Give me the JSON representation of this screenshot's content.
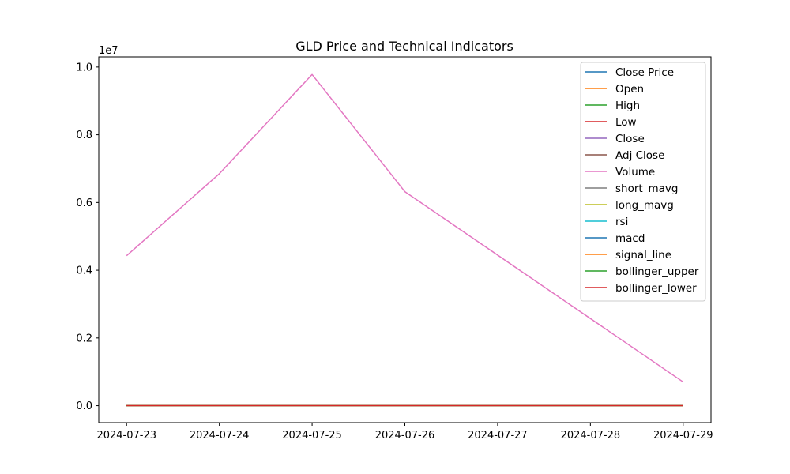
{
  "chart_data": {
    "type": "line",
    "title": "GLD Price and Technical Indicators",
    "xlabel": "",
    "ylabel": "",
    "y_offset_label": "1e7",
    "x": [
      "2024-07-23",
      "2024-07-24",
      "2024-07-25",
      "2024-07-26",
      "2024-07-29"
    ],
    "xticks": [
      "2024-07-23",
      "2024-07-24",
      "2024-07-25",
      "2024-07-26",
      "2024-07-27",
      "2024-07-28",
      "2024-07-29"
    ],
    "yticks": [
      "0.0",
      "0.2",
      "0.4",
      "0.6",
      "0.8",
      "1.0"
    ],
    "ylim": [
      -0.05,
      1.03
    ],
    "y_unit_multiplier": 10000000,
    "grid": false,
    "legend_position": "top-right",
    "series": [
      {
        "name": "Close Price",
        "color": "#1f77b4",
        "values": [
          0.0,
          0.0,
          0.0,
          0.0,
          0.0
        ]
      },
      {
        "name": "Open",
        "color": "#ff7f0e",
        "values": [
          0.0,
          0.0,
          0.0,
          0.0,
          0.0
        ]
      },
      {
        "name": "High",
        "color": "#2ca02c",
        "values": [
          0.0,
          0.0,
          0.0,
          0.0,
          0.0
        ]
      },
      {
        "name": "Low",
        "color": "#d62728",
        "values": [
          0.0,
          0.0,
          0.0,
          0.0,
          0.0
        ]
      },
      {
        "name": "Close",
        "color": "#9467bd",
        "values": [
          0.0,
          0.0,
          0.0,
          0.0,
          0.0
        ]
      },
      {
        "name": "Adj Close",
        "color": "#8c564b",
        "values": [
          0.0,
          0.0,
          0.0,
          0.0,
          0.0
        ]
      },
      {
        "name": "Volume",
        "color": "#e377c2",
        "values": [
          0.443,
          0.685,
          0.978,
          0.632,
          0.07
        ]
      },
      {
        "name": "short_mavg",
        "color": "#7f7f7f",
        "values": [
          0.0,
          0.0,
          0.0,
          0.0,
          0.0
        ]
      },
      {
        "name": "long_mavg",
        "color": "#bcbd22",
        "values": [
          0.0,
          0.0,
          0.0,
          0.0,
          0.0
        ]
      },
      {
        "name": "rsi",
        "color": "#17becf",
        "values": [
          0.0,
          0.0,
          0.0,
          0.0,
          0.0
        ]
      },
      {
        "name": "macd",
        "color": "#1f77b4",
        "values": [
          0.0,
          0.0,
          0.0,
          0.0,
          0.0
        ]
      },
      {
        "name": "signal_line",
        "color": "#ff7f0e",
        "values": [
          0.0,
          0.0,
          0.0,
          0.0,
          0.0
        ]
      },
      {
        "name": "bollinger_upper",
        "color": "#2ca02c",
        "values": [
          0.0,
          0.0,
          0.0,
          0.0,
          0.0
        ]
      },
      {
        "name": "bollinger_lower",
        "color": "#d62728",
        "values": [
          0.0,
          0.0,
          0.0,
          0.0,
          0.0
        ]
      }
    ]
  }
}
